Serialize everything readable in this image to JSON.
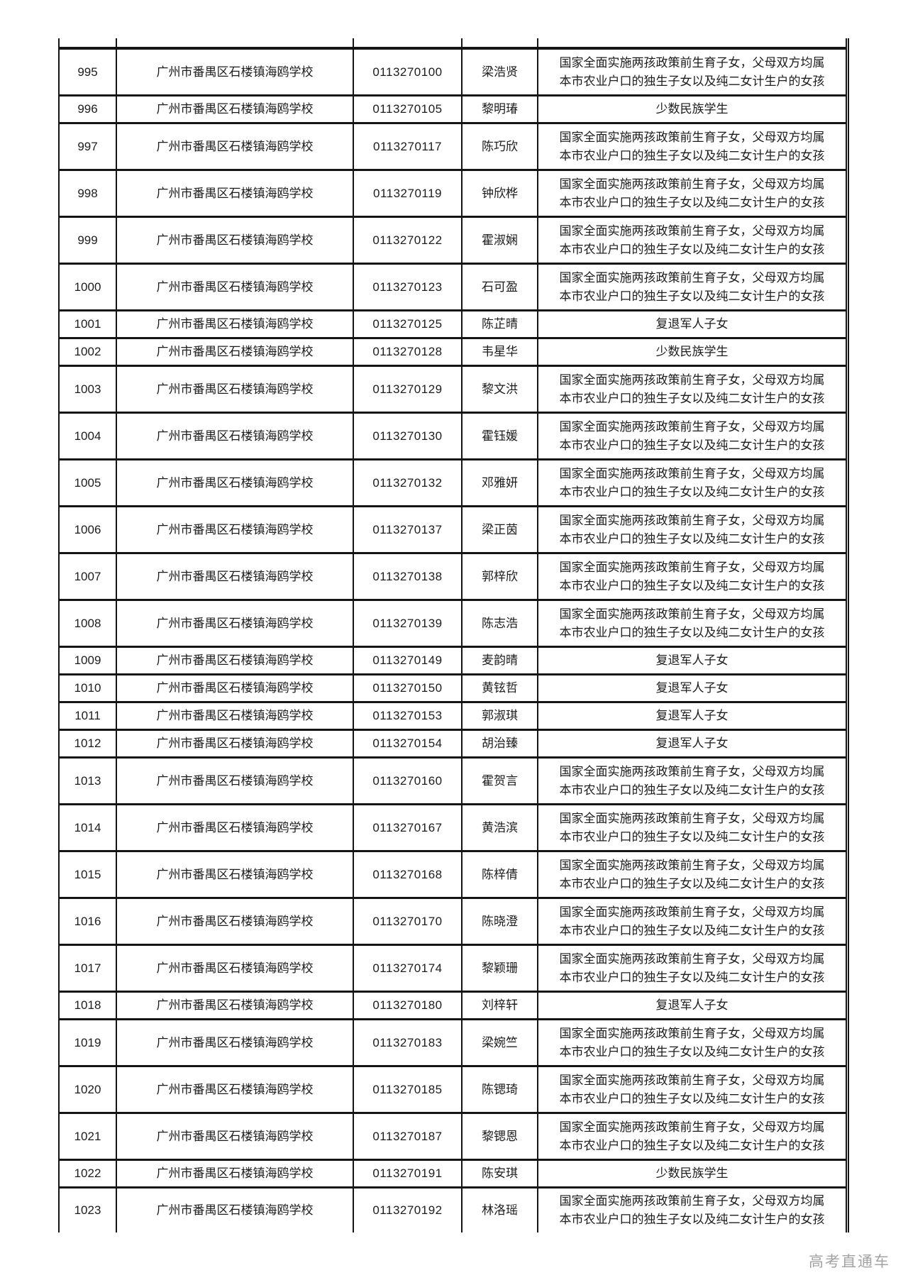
{
  "page": {
    "watermark": "高考直通车"
  },
  "table": {
    "rows": [
      {
        "num": "995",
        "school": "广州市番禺区石楼镇海鸥学校",
        "id": "0113270100",
        "name": "梁浩贤",
        "category": "国家全面实施两孩政策前生育子女，父母双方均属\n本市农业户口的独生子女以及纯二女计生户的女孩"
      },
      {
        "num": "996",
        "school": "广州市番禺区石楼镇海鸥学校",
        "id": "0113270105",
        "name": "黎明瑃",
        "category": "少数民族学生"
      },
      {
        "num": "997",
        "school": "广州市番禺区石楼镇海鸥学校",
        "id": "0113270117",
        "name": "陈巧欣",
        "category": "国家全面实施两孩政策前生育子女，父母双方均属\n本市农业户口的独生子女以及纯二女计生户的女孩"
      },
      {
        "num": "998",
        "school": "广州市番禺区石楼镇海鸥学校",
        "id": "0113270119",
        "name": "钟欣桦",
        "category": "国家全面实施两孩政策前生育子女，父母双方均属\n本市农业户口的独生子女以及纯二女计生户的女孩"
      },
      {
        "num": "999",
        "school": "广州市番禺区石楼镇海鸥学校",
        "id": "0113270122",
        "name": "霍淑娴",
        "category": "国家全面实施两孩政策前生育子女，父母双方均属\n本市农业户口的独生子女以及纯二女计生户的女孩"
      },
      {
        "num": "1000",
        "school": "广州市番禺区石楼镇海鸥学校",
        "id": "0113270123",
        "name": "石可盈",
        "category": "国家全面实施两孩政策前生育子女，父母双方均属\n本市农业户口的独生子女以及纯二女计生户的女孩"
      },
      {
        "num": "1001",
        "school": "广州市番禺区石楼镇海鸥学校",
        "id": "0113270125",
        "name": "陈芷晴",
        "category": "复退军人子女"
      },
      {
        "num": "1002",
        "school": "广州市番禺区石楼镇海鸥学校",
        "id": "0113270128",
        "name": "韦星华",
        "category": "少数民族学生"
      },
      {
        "num": "1003",
        "school": "广州市番禺区石楼镇海鸥学校",
        "id": "0113270129",
        "name": "黎文洪",
        "category": "国家全面实施两孩政策前生育子女，父母双方均属\n本市农业户口的独生子女以及纯二女计生户的女孩"
      },
      {
        "num": "1004",
        "school": "广州市番禺区石楼镇海鸥学校",
        "id": "0113270130",
        "name": "霍钰媛",
        "category": "国家全面实施两孩政策前生育子女，父母双方均属\n本市农业户口的独生子女以及纯二女计生户的女孩"
      },
      {
        "num": "1005",
        "school": "广州市番禺区石楼镇海鸥学校",
        "id": "0113270132",
        "name": "邓雅妍",
        "category": "国家全面实施两孩政策前生育子女，父母双方均属\n本市农业户口的独生子女以及纯二女计生户的女孩"
      },
      {
        "num": "1006",
        "school": "广州市番禺区石楼镇海鸥学校",
        "id": "0113270137",
        "name": "梁正茵",
        "category": "国家全面实施两孩政策前生育子女，父母双方均属\n本市农业户口的独生子女以及纯二女计生户的女孩"
      },
      {
        "num": "1007",
        "school": "广州市番禺区石楼镇海鸥学校",
        "id": "0113270138",
        "name": "郭梓欣",
        "category": "国家全面实施两孩政策前生育子女，父母双方均属\n本市农业户口的独生子女以及纯二女计生户的女孩"
      },
      {
        "num": "1008",
        "school": "广州市番禺区石楼镇海鸥学校",
        "id": "0113270139",
        "name": "陈志浩",
        "category": "国家全面实施两孩政策前生育子女，父母双方均属\n本市农业户口的独生子女以及纯二女计生户的女孩"
      },
      {
        "num": "1009",
        "school": "广州市番禺区石楼镇海鸥学校",
        "id": "0113270149",
        "name": "麦韵晴",
        "category": "复退军人子女"
      },
      {
        "num": "1010",
        "school": "广州市番禺区石楼镇海鸥学校",
        "id": "0113270150",
        "name": "黄铉哲",
        "category": "复退军人子女"
      },
      {
        "num": "1011",
        "school": "广州市番禺区石楼镇海鸥学校",
        "id": "0113270153",
        "name": "郭淑琪",
        "category": "复退军人子女"
      },
      {
        "num": "1012",
        "school": "广州市番禺区石楼镇海鸥学校",
        "id": "0113270154",
        "name": "胡治臻",
        "category": "复退军人子女"
      },
      {
        "num": "1013",
        "school": "广州市番禺区石楼镇海鸥学校",
        "id": "0113270160",
        "name": "霍贺言",
        "category": "国家全面实施两孩政策前生育子女，父母双方均属\n本市农业户口的独生子女以及纯二女计生户的女孩"
      },
      {
        "num": "1014",
        "school": "广州市番禺区石楼镇海鸥学校",
        "id": "0113270167",
        "name": "黄浩滨",
        "category": "国家全面实施两孩政策前生育子女，父母双方均属\n本市农业户口的独生子女以及纯二女计生户的女孩"
      },
      {
        "num": "1015",
        "school": "广州市番禺区石楼镇海鸥学校",
        "id": "0113270168",
        "name": "陈梓倩",
        "category": "国家全面实施两孩政策前生育子女，父母双方均属\n本市农业户口的独生子女以及纯二女计生户的女孩"
      },
      {
        "num": "1016",
        "school": "广州市番禺区石楼镇海鸥学校",
        "id": "0113270170",
        "name": "陈晓澄",
        "category": "国家全面实施两孩政策前生育子女，父母双方均属\n本市农业户口的独生子女以及纯二女计生户的女孩"
      },
      {
        "num": "1017",
        "school": "广州市番禺区石楼镇海鸥学校",
        "id": "0113270174",
        "name": "黎颖珊",
        "category": "国家全面实施两孩政策前生育子女，父母双方均属\n本市农业户口的独生子女以及纯二女计生户的女孩"
      },
      {
        "num": "1018",
        "school": "广州市番禺区石楼镇海鸥学校",
        "id": "0113270180",
        "name": "刘梓轩",
        "category": "复退军人子女"
      },
      {
        "num": "1019",
        "school": "广州市番禺区石楼镇海鸥学校",
        "id": "0113270183",
        "name": "梁婉竺",
        "category": "国家全面实施两孩政策前生育子女，父母双方均属\n本市农业户口的独生子女以及纯二女计生户的女孩"
      },
      {
        "num": "1020",
        "school": "广州市番禺区石楼镇海鸥学校",
        "id": "0113270185",
        "name": "陈锶琦",
        "category": "国家全面实施两孩政策前生育子女，父母双方均属\n本市农业户口的独生子女以及纯二女计生户的女孩"
      },
      {
        "num": "1021",
        "school": "广州市番禺区石楼镇海鸥学校",
        "id": "0113270187",
        "name": "黎锶恩",
        "category": "国家全面实施两孩政策前生育子女，父母双方均属\n本市农业户口的独生子女以及纯二女计生户的女孩"
      },
      {
        "num": "1022",
        "school": "广州市番禺区石楼镇海鸥学校",
        "id": "0113270191",
        "name": "陈安琪",
        "category": "少数民族学生"
      },
      {
        "num": "1023",
        "school": "广州市番禺区石楼镇海鸥学校",
        "id": "0113270192",
        "name": "林洛瑶",
        "category": "国家全面实施两孩政策前生育子女，父母双方均属\n本市农业户口的独生子女以及纯二女计生户的女孩"
      }
    ]
  }
}
